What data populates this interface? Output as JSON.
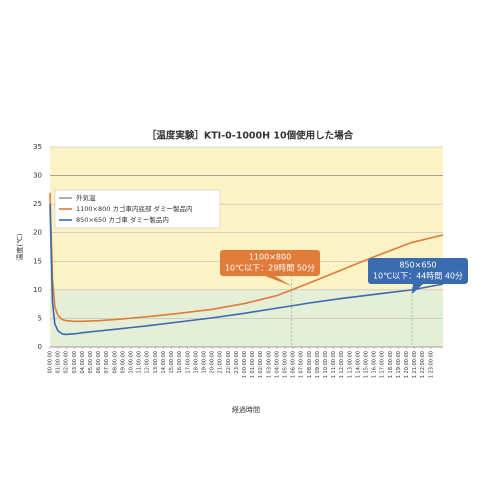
{
  "chart_data": {
    "type": "line",
    "title": "［温度実験］KTI-0-1000H 10個使用した場合",
    "y_label": "温度(℃)",
    "x_label": "経過時間",
    "ylim": [
      0,
      35
    ],
    "yticks": [
      0,
      5,
      10,
      15,
      20,
      25,
      30,
      35
    ],
    "xlim": [
      0,
      48.5
    ],
    "xticks": [
      {
        "value": 0,
        "label": "00:00:00"
      },
      {
        "value": 1,
        "label": "01:00:00"
      },
      {
        "value": 2,
        "label": "02:00:00"
      },
      {
        "value": 3,
        "label": "03:00:00"
      },
      {
        "value": 4,
        "label": "04:00:00"
      },
      {
        "value": 5,
        "label": "05:00:00"
      },
      {
        "value": 6,
        "label": "06:00:00"
      },
      {
        "value": 7,
        "label": "07:00:00"
      },
      {
        "value": 8,
        "label": "08:00:00"
      },
      {
        "value": 9,
        "label": "09:00:00"
      },
      {
        "value": 10,
        "label": "10:00:00"
      },
      {
        "value": 11,
        "label": "11:00:00"
      },
      {
        "value": 12,
        "label": "12:00:00"
      },
      {
        "value": 13,
        "label": "13:00:00"
      },
      {
        "value": 14,
        "label": "14:00:00"
      },
      {
        "value": 15,
        "label": "15:00:00"
      },
      {
        "value": 16,
        "label": "16:00:00"
      },
      {
        "value": 17,
        "label": "17:00:00"
      },
      {
        "value": 18,
        "label": "18:00:00"
      },
      {
        "value": 19,
        "label": "19:00:00"
      },
      {
        "value": 20,
        "label": "20:00:00"
      },
      {
        "value": 21,
        "label": "21:00:00"
      },
      {
        "value": 22,
        "label": "22:00:00"
      },
      {
        "value": 23,
        "label": "23:00:00"
      },
      {
        "value": 24,
        "label": "1 00:00:00"
      },
      {
        "value": 25,
        "label": "1 01:00:00"
      },
      {
        "value": 26,
        "label": "1 02:00:00"
      },
      {
        "value": 27,
        "label": "1 03:00:00"
      },
      {
        "value": 28,
        "label": "1 04:00:00"
      },
      {
        "value": 29,
        "label": "1 05:00:00"
      },
      {
        "value": 30,
        "label": "1 06:00:00"
      },
      {
        "value": 31,
        "label": "1 07:00:00"
      },
      {
        "value": 32,
        "label": "1 08:00:00"
      },
      {
        "value": 33,
        "label": "1 09:00:00"
      },
      {
        "value": 34,
        "label": "1 10:00:00"
      },
      {
        "value": 35,
        "label": "1 11:00:00"
      },
      {
        "value": 36,
        "label": "1 12:00:00"
      },
      {
        "value": 37,
        "label": "1 13:00:00"
      },
      {
        "value": 38,
        "label": "1 14:00:00"
      },
      {
        "value": 39,
        "label": "1 15:00:00"
      },
      {
        "value": 40,
        "label": "1 16:00:00"
      },
      {
        "value": 41,
        "label": "1 17:00:00"
      },
      {
        "value": 42,
        "label": "1 18:00:00"
      },
      {
        "value": 43,
        "label": "1 19:00:00"
      },
      {
        "value": 44,
        "label": "1 20:00:00"
      },
      {
        "value": 45,
        "label": "1 21:00:00"
      },
      {
        "value": 46,
        "label": "1 22:00:00"
      },
      {
        "value": 47,
        "label": "1 23:00:00"
      }
    ],
    "threshold": 10,
    "grid": true,
    "legend": "upper-left",
    "x": [
      0,
      0.3,
      0.6,
      1,
      1.5,
      2,
      3,
      4,
      6,
      8,
      12,
      16,
      20,
      24,
      28,
      29.83,
      32,
      36,
      40,
      44.67,
      48.5
    ],
    "series": [
      {
        "name": "外気温",
        "color": "#9a9a9a",
        "values": [
          30,
          30,
          30,
          30,
          30,
          30,
          30,
          30,
          30,
          30,
          30,
          30,
          30,
          30,
          30,
          30,
          30,
          30,
          30,
          30,
          30
        ]
      },
      {
        "name": "1100×800 カゴ車内底部 ダミー製品内",
        "color": "#e07b39",
        "values": [
          27,
          12,
          7,
          5.5,
          4.8,
          4.6,
          4.5,
          4.5,
          4.6,
          4.8,
          5.3,
          5.9,
          6.6,
          7.6,
          9.0,
          10,
          11.2,
          13.5,
          15.8,
          18.3,
          19.6
        ]
      },
      {
        "name": "850×650 カゴ車 ダミー製品内",
        "color": "#3a6ab0",
        "values": [
          25,
          8,
          4,
          2.8,
          2.3,
          2.2,
          2.3,
          2.5,
          2.8,
          3.1,
          3.7,
          4.4,
          5.1,
          5.9,
          6.8,
          7.2,
          7.7,
          8.5,
          9.2,
          10,
          11
        ]
      }
    ],
    "annotations": [
      {
        "x": 29.83,
        "lines": [
          "1100×800",
          "10℃以下：29時間 50分"
        ],
        "color": "#e07b39"
      },
      {
        "x": 44.67,
        "lines": [
          "850×650",
          "10℃以下：44時間 40分"
        ],
        "color": "#3a6ab0"
      }
    ]
  }
}
